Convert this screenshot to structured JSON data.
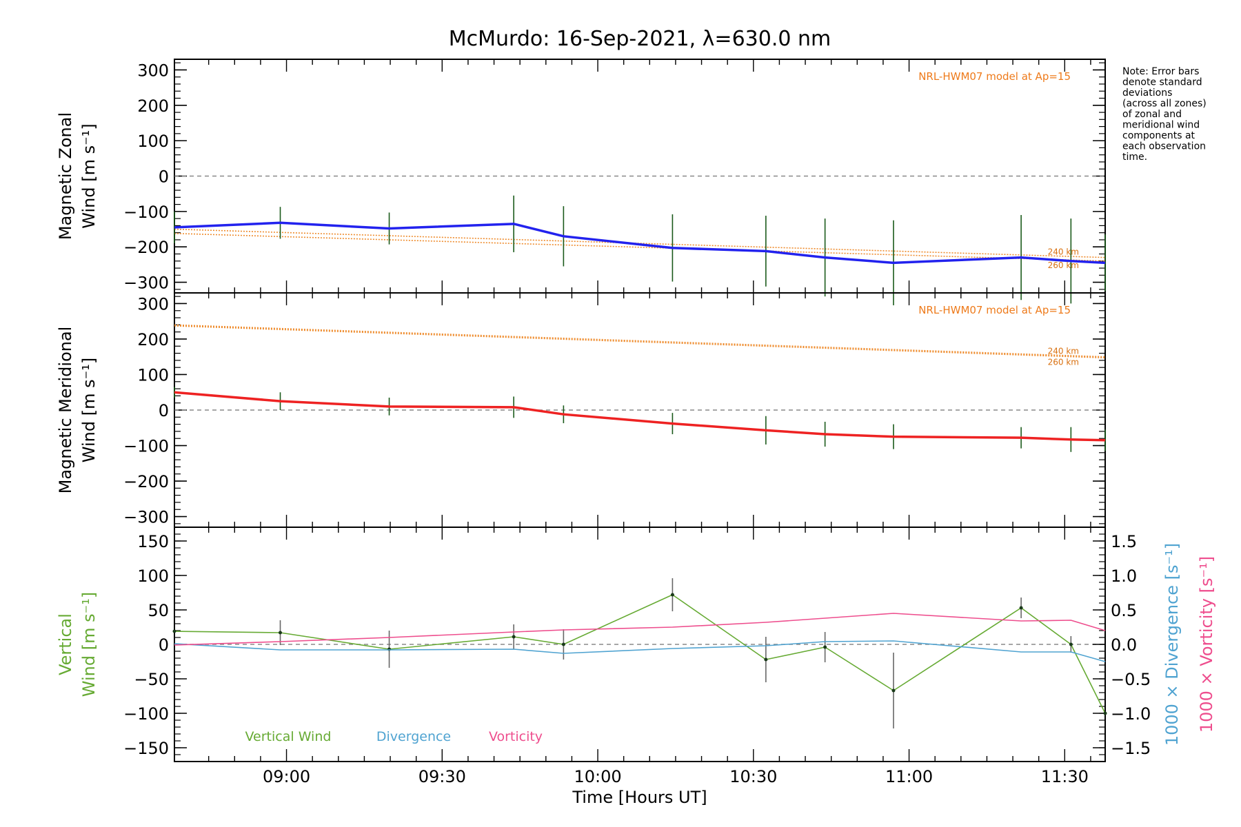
{
  "chart_data": {
    "type": "line",
    "title": "McMurdo: 16-Sep-2021, λ=630.0 nm",
    "xlabel": "Time [Hours UT]",
    "x_ticks": [
      {
        "t": 9.0,
        "label": "09:00"
      },
      {
        "t": 9.5,
        "label": "09:30"
      },
      {
        "t": 10.0,
        "label": "10:00"
      },
      {
        "t": 10.5,
        "label": "10:30"
      },
      {
        "t": 11.0,
        "label": "11:00"
      },
      {
        "t": 11.5,
        "label": "11:30"
      }
    ],
    "xlim": [
      8.64,
      11.63
    ],
    "note": [
      "Note: Error bars",
      "denote standard",
      "deviations",
      "(across all zones)",
      "of zonal and",
      "meridional wind",
      "components at",
      "each observation",
      "time."
    ],
    "panels": [
      {
        "id": "zonal",
        "ylabel_lines": [
          "Magnetic Zonal",
          "Wind [m s⁻¹]"
        ],
        "ylim": [
          -330,
          330
        ],
        "yticks": [
          300,
          200,
          100,
          0,
          -100,
          -200,
          -300
        ],
        "model_label": "NRL-HWM07 model at Ap=15",
        "model_lines": [
          {
            "label": "240 km",
            "x": [
              8.64,
              11.63
            ],
            "y": [
              -150,
              -230
            ]
          },
          {
            "label": "260 km",
            "x": [
              8.64,
              11.63
            ],
            "y": [
              -162,
              -240
            ]
          }
        ],
        "series": [
          {
            "name": "Magnetic Zonal Wind",
            "color": "#2222ee",
            "x": [
              8.64,
              8.98,
              9.33,
              9.73,
              9.89,
              10.24,
              10.54,
              10.73,
              10.95,
              11.36,
              11.52,
              11.63
            ],
            "y": [
              -145,
              -132,
              -148,
              -135,
              -170,
              -203,
              -212,
              -230,
              -245,
              -230,
              -240,
              -245
            ],
            "err": [
              45,
              45,
              45,
              80,
              85,
              95,
              100,
              110,
              120,
              120,
              120,
              80
            ]
          }
        ]
      },
      {
        "id": "meridional",
        "ylabel_lines": [
          "Magnetic Meridional",
          "Wind [m s⁻¹]"
        ],
        "ylim": [
          -330,
          330
        ],
        "yticks": [
          300,
          200,
          100,
          0,
          -100,
          -200,
          -300
        ],
        "model_label": "NRL-HWM07 model at Ap=15",
        "model_lines": [
          {
            "label": "240 km",
            "x": [
              8.64,
              11.63
            ],
            "y": [
              240,
              150
            ]
          },
          {
            "label": "260 km",
            "x": [
              8.64,
              11.63
            ],
            "y": [
              237,
              147
            ]
          }
        ],
        "series": [
          {
            "name": "Magnetic Meridional Wind",
            "color": "#ee2222",
            "x": [
              8.64,
              8.98,
              9.33,
              9.73,
              9.89,
              10.24,
              10.54,
              10.73,
              10.95,
              11.36,
              11.52,
              11.63
            ],
            "y": [
              50,
              25,
              10,
              8,
              -12,
              -38,
              -57,
              -68,
              -75,
              -78,
              -83,
              -85
            ],
            "err": [
              15,
              25,
              25,
              30,
              25,
              30,
              40,
              35,
              35,
              30,
              35,
              30
            ]
          }
        ]
      },
      {
        "id": "vertical",
        "ylabel_lines": [
          "Vertical",
          "Wind [m s⁻¹]"
        ],
        "ylim": [
          -170,
          170
        ],
        "yticks": [
          150,
          100,
          50,
          0,
          -50,
          -100,
          -150
        ],
        "right_axis": {
          "ylim": [
            -1.7,
            1.7
          ],
          "yticks": [
            1.5,
            1.0,
            0.5,
            0.0,
            -0.5,
            -1.0,
            -1.5
          ],
          "tick_labels": [
            "1.5",
            "1.0",
            "0.5",
            "0.0",
            "−0.5",
            "−1.0",
            "−1.5"
          ],
          "label_divergence": "1000 × Divergence [s⁻¹]",
          "label_vorticity": "1000 × Vorticity [s⁻¹]",
          "divergence_color": "#4fa3d1",
          "vorticity_color": "#ee4d8d"
        },
        "legend": [
          {
            "label": "Vertical Wind",
            "color": "#66aa33"
          },
          {
            "label": "Divergence",
            "color": "#4fa3d1"
          },
          {
            "label": "Vorticity",
            "color": "#ee4d8d"
          }
        ],
        "series": [
          {
            "name": "Vertical Wind",
            "color": "#66aa33",
            "axis": "left",
            "x": [
              8.64,
              8.98,
              9.33,
              9.73,
              9.89,
              10.24,
              10.54,
              10.73,
              10.95,
              11.36,
              11.52,
              11.63
            ],
            "y": [
              19,
              17,
              -7,
              11,
              0,
              72,
              -22,
              -4,
              -67,
              53,
              0,
              -100
            ],
            "err": [
              null,
              18,
              27,
              18,
              22,
              24,
              33,
              22,
              55,
              15,
              12,
              null
            ]
          },
          {
            "name": "Divergence",
            "color": "#4fa3d1",
            "axis": "right",
            "x": [
              8.64,
              8.98,
              9.33,
              9.73,
              9.89,
              10.24,
              10.54,
              10.73,
              10.95,
              11.36,
              11.52,
              11.63
            ],
            "y": [
              0.01,
              -0.08,
              -0.08,
              -0.07,
              -0.13,
              -0.06,
              -0.02,
              0.04,
              0.05,
              -0.11,
              -0.11,
              -0.25
            ]
          },
          {
            "name": "Vorticity",
            "color": "#ee4d8d",
            "axis": "right",
            "x": [
              8.64,
              8.98,
              9.33,
              9.73,
              9.89,
              10.24,
              10.54,
              10.73,
              10.95,
              11.36,
              11.52,
              11.63
            ],
            "y": [
              -0.01,
              0.04,
              0.1,
              0.18,
              0.21,
              0.25,
              0.32,
              0.38,
              0.45,
              0.34,
              0.35,
              0.2
            ]
          }
        ]
      }
    ]
  }
}
